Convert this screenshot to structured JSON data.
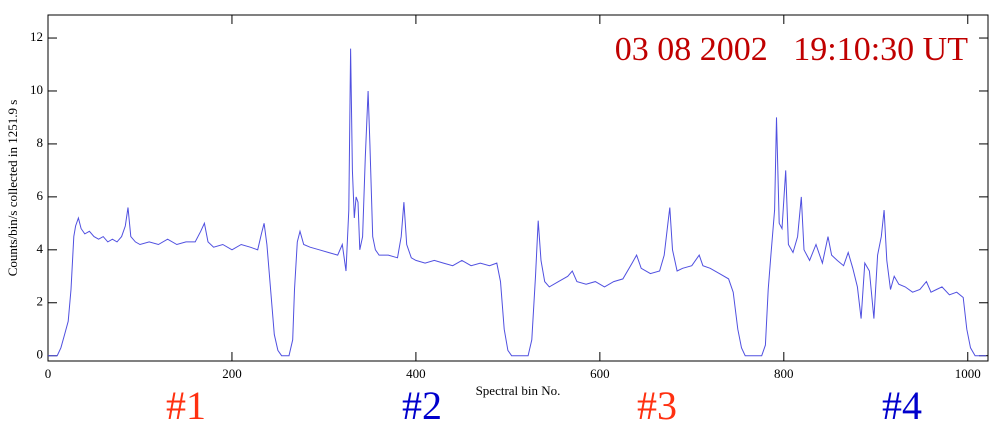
{
  "chart_data": {
    "type": "line",
    "x_label": "Spectral bin No.",
    "y_label": "Counts/bin/s collected in  1251.9 s",
    "annotations": [
      {
        "text": "03 08 2002   19:10:30 UT",
        "color": "#c00000"
      },
      {
        "text": "#1",
        "color": "#ff3010"
      },
      {
        "text": "#2",
        "color": "#0000cc"
      },
      {
        "text": "#3",
        "color": "#ff3010"
      },
      {
        "text": "#4",
        "color": "#0000cc"
      }
    ],
    "xlim": [
      0,
      1022
    ],
    "ylim": [
      -0.2,
      12.87
    ],
    "xticks": [
      0,
      200,
      400,
      600,
      800,
      1000
    ],
    "yticks": [
      0,
      2,
      4,
      6,
      8,
      10,
      12
    ],
    "color": "#5050e0",
    "x": [
      0,
      10,
      14,
      18,
      22,
      25,
      28,
      30,
      33,
      36,
      40,
      45,
      50,
      55,
      60,
      65,
      70,
      75,
      80,
      84,
      87,
      90,
      95,
      100,
      110,
      120,
      130,
      140,
      150,
      160,
      166,
      170,
      174,
      180,
      190,
      200,
      210,
      220,
      228,
      232,
      235,
      238,
      242,
      246,
      250,
      254,
      262,
      266,
      268,
      271,
      274,
      278,
      285,
      295,
      305,
      315,
      320,
      324,
      327,
      329,
      331,
      333,
      335,
      337,
      339,
      342,
      345,
      348,
      350,
      353,
      356,
      360,
      370,
      380,
      384,
      387,
      390,
      395,
      400,
      410,
      420,
      430,
      440,
      450,
      460,
      470,
      480,
      488,
      492,
      496,
      500,
      504,
      522,
      526,
      530,
      533,
      536,
      540,
      545,
      555,
      565,
      570,
      575,
      585,
      595,
      605,
      615,
      625,
      635,
      640,
      645,
      655,
      665,
      670,
      674,
      676,
      679,
      684,
      690,
      700,
      708,
      712,
      720,
      730,
      740,
      745,
      750,
      754,
      758,
      776,
      780,
      783,
      786,
      790,
      792,
      795,
      798,
      802,
      805,
      810,
      815,
      819,
      822,
      828,
      835,
      842,
      848,
      852,
      858,
      865,
      870,
      875,
      880,
      884,
      888,
      893,
      898,
      902,
      906,
      909,
      912,
      916,
      920,
      925,
      932,
      940,
      948,
      955,
      960,
      966,
      972,
      980,
      988,
      995,
      999,
      1003,
      1008,
      1020
    ],
    "values": [
      0,
      0,
      0.3,
      0.8,
      1.3,
      2.5,
      4.5,
      4.9,
      5.2,
      4.8,
      4.6,
      4.7,
      4.5,
      4.4,
      4.5,
      4.3,
      4.4,
      4.3,
      4.5,
      4.9,
      5.6,
      4.5,
      4.3,
      4.2,
      4.3,
      4.2,
      4.4,
      4.2,
      4.3,
      4.3,
      4.7,
      5.0,
      4.3,
      4.1,
      4.2,
      4.0,
      4.2,
      4.1,
      4.0,
      4.6,
      5.0,
      4.2,
      2.5,
      0.8,
      0.2,
      0,
      0,
      0.6,
      2.5,
      4.3,
      4.7,
      4.2,
      4.1,
      4.0,
      3.9,
      3.8,
      4.2,
      3.2,
      5.5,
      11.6,
      7,
      5.2,
      6.0,
      5.8,
      4.0,
      4.5,
      7.5,
      10.0,
      8,
      4.5,
      4.0,
      3.8,
      3.8,
      3.7,
      4.5,
      5.8,
      4.2,
      3.7,
      3.6,
      3.5,
      3.6,
      3.5,
      3.4,
      3.6,
      3.4,
      3.5,
      3.4,
      3.5,
      2.8,
      1.0,
      0.2,
      0,
      0,
      0.6,
      3,
      5.1,
      3.6,
      2.8,
      2.6,
      2.8,
      3.0,
      3.2,
      2.8,
      2.7,
      2.8,
      2.6,
      2.8,
      2.9,
      3.5,
      3.8,
      3.3,
      3.1,
      3.2,
      3.8,
      5.0,
      5.6,
      4.0,
      3.2,
      3.3,
      3.4,
      3.8,
      3.4,
      3.3,
      3.1,
      2.9,
      2.4,
      1.0,
      0.3,
      0,
      0,
      0.4,
      2.5,
      3.8,
      5.5,
      9.0,
      5.0,
      4.8,
      7.0,
      4.2,
      3.9,
      4.5,
      6.0,
      4.0,
      3.6,
      4.2,
      3.5,
      4.5,
      3.8,
      3.6,
      3.4,
      3.9,
      3.3,
      2.6,
      1.4,
      3.5,
      3.2,
      1.4,
      3.8,
      4.5,
      5.5,
      3.6,
      2.5,
      3.0,
      2.7,
      2.6,
      2.4,
      2.5,
      2.8,
      2.4,
      2.5,
      2.6,
      2.3,
      2.4,
      2.2,
      1.0,
      0.3,
      0,
      0
    ]
  }
}
